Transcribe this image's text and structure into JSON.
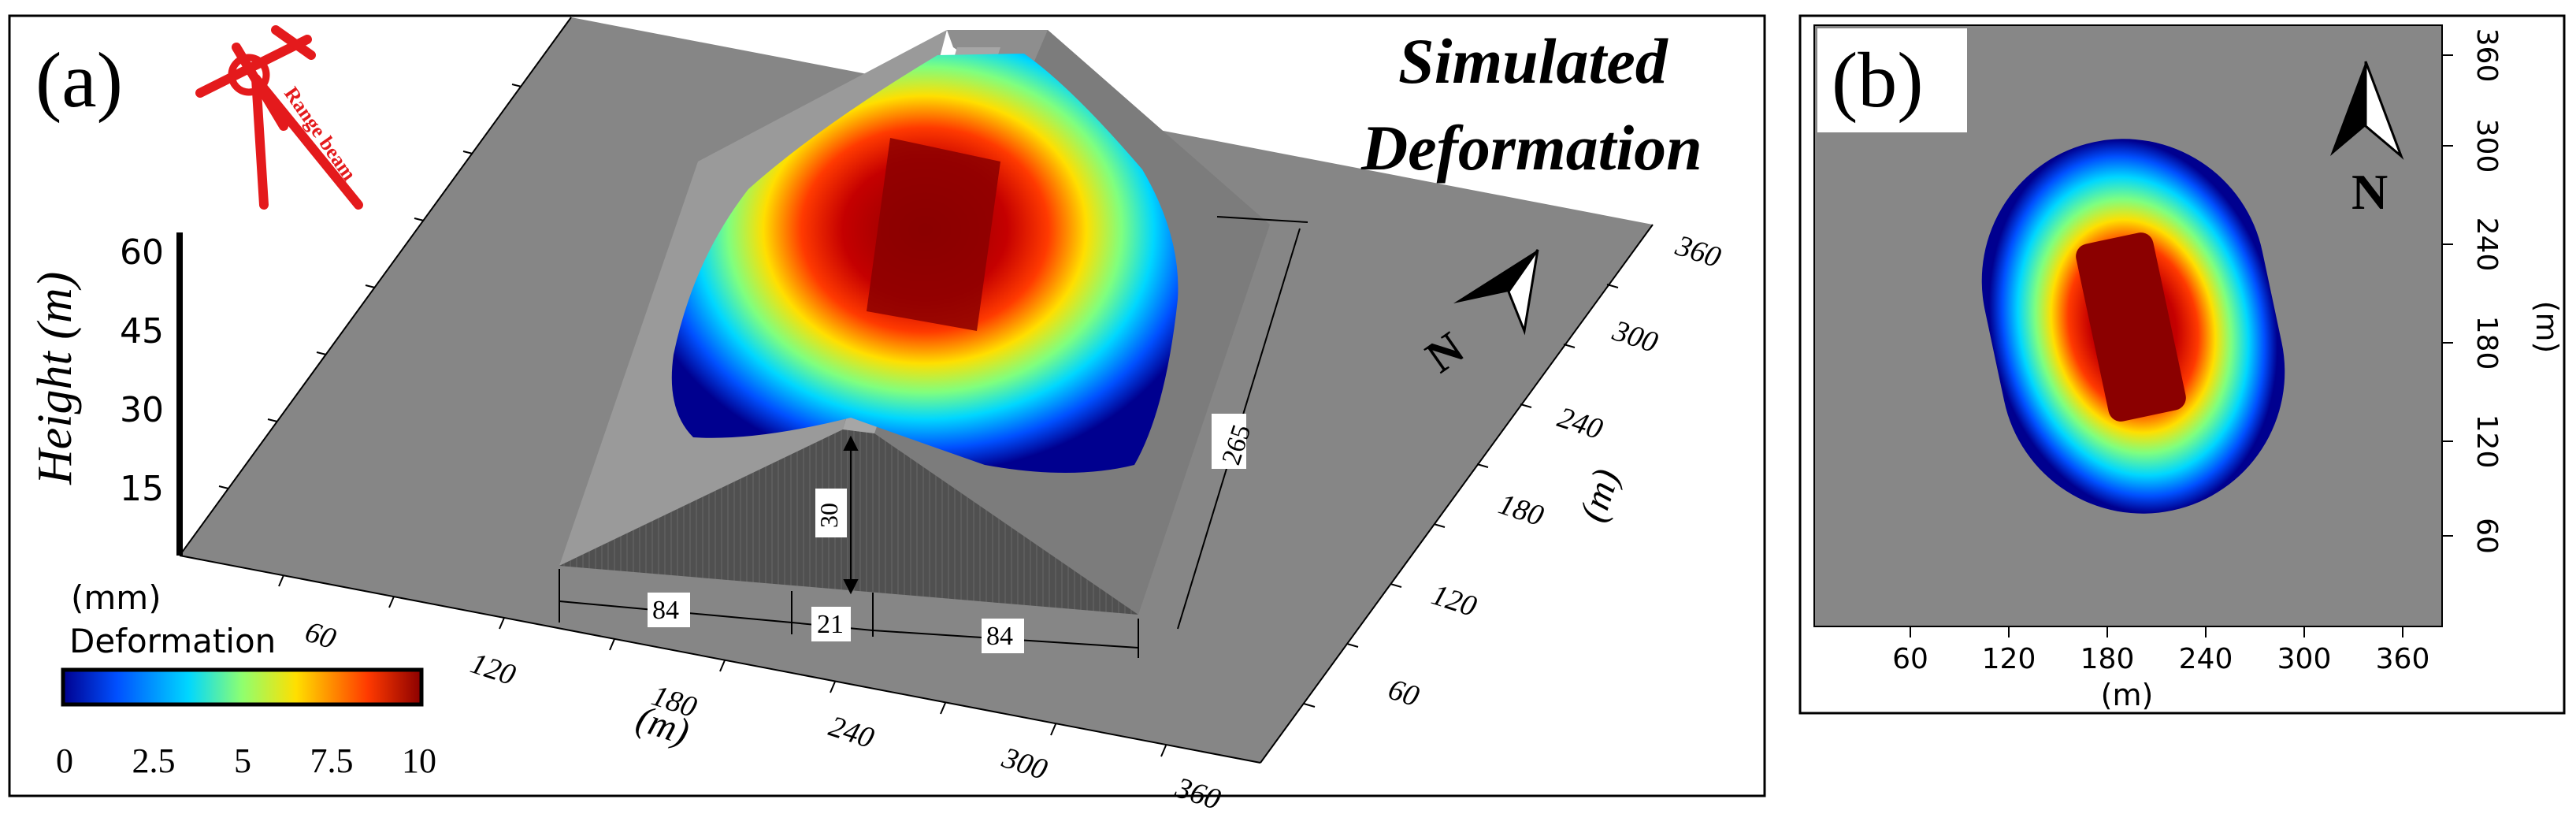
{
  "panel_a": {
    "label": "(a)",
    "title_line1": "Simulated",
    "title_line2": "Deformation",
    "height_axis": {
      "label": "Height (m)",
      "ticks": [
        "60",
        "45",
        "30",
        "15"
      ]
    },
    "deformation_scale": {
      "unit": "(mm)",
      "label": "Deformation",
      "ticks": [
        "0",
        "2.5",
        "5",
        "7.5",
        "10"
      ],
      "colormap": [
        "#00008f",
        "#0050ff",
        "#00d7ff",
        "#8fff6f",
        "#ffdf00",
        "#ff3a00",
        "#8b0000"
      ]
    },
    "range_beam_label": "Range beam",
    "north_label": "N",
    "front_axis": {
      "ticks": [
        "60",
        "120",
        "180",
        "240",
        "300",
        "360"
      ],
      "label": "(m)"
    },
    "right_axis": {
      "ticks": [
        "60",
        "120",
        "180",
        "240",
        "300",
        "360"
      ],
      "label": "(m)"
    },
    "dimensions": {
      "height": "30",
      "left_base": "84",
      "top_width": "21",
      "right_base": "84",
      "length": "265"
    }
  },
  "panel_b": {
    "label": "(b)",
    "north_label": "N",
    "x_axis": {
      "ticks": [
        "60",
        "120",
        "180",
        "240",
        "300",
        "360"
      ],
      "label": "(m)"
    },
    "y_axis": {
      "ticks": [
        "360",
        "300",
        "240",
        "180",
        "120",
        "60"
      ],
      "label": "(m)"
    }
  },
  "colors": {
    "frame": "#000000",
    "ground": "#8a8a8a",
    "accent_red": "#e41a1c",
    "deep_red": "#8b0000",
    "deep_blue": "#00008f"
  }
}
